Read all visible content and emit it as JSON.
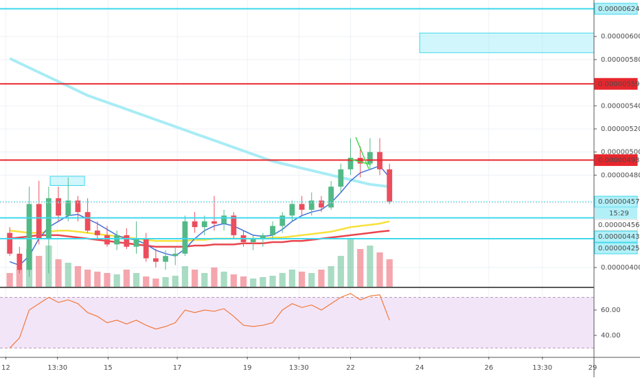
{
  "chart_data": {
    "type": "candlestick",
    "xlim": [
      0,
      61
    ],
    "xticks": [
      {
        "value": 0.6,
        "label": "12"
      },
      {
        "value": 5.9,
        "label": "13:30"
      },
      {
        "value": 11.1,
        "label": "15"
      },
      {
        "value": 18.2,
        "label": "17"
      },
      {
        "value": 25.4,
        "label": "19"
      },
      {
        "value": 30.7,
        "label": "13:30"
      },
      {
        "value": 36,
        "label": "22"
      },
      {
        "value": 43.1,
        "label": "24"
      },
      {
        "value": 50.2,
        "label": "26"
      },
      {
        "value": 55.7,
        "label": "13:30"
      },
      {
        "value": 61,
        "label": "29"
      }
    ],
    "ylim": [
      3.834e-06,
      6.316e-06
    ],
    "yticks": [
      {
        "value": 4e-06,
        "label": "0.00000400"
      },
      {
        "value": 4.8e-06,
        "label": "0.00000480"
      },
      {
        "value": 5e-06,
        "label": "0.00000500"
      },
      {
        "value": 5.2e-06,
        "label": "0.00000520"
      },
      {
        "value": 5.4e-06,
        "label": "0.00000540"
      },
      {
        "value": 5.8e-06,
        "label": "0.00000580"
      },
      {
        "value": 6e-06,
        "label": "0.00000600"
      }
    ],
    "grid": true,
    "up_color": "#53b987",
    "down_color": "#eb4d5c",
    "x": [
      1,
      2,
      3,
      4,
      5,
      6,
      7,
      8,
      9,
      10,
      11,
      12,
      13,
      14,
      15,
      16,
      17,
      18,
      19,
      20,
      21,
      22,
      23,
      24,
      25,
      26,
      27,
      28,
      29,
      30,
      31,
      32,
      33,
      34,
      35,
      36,
      37,
      38,
      39,
      40
    ],
    "open": [
      4.3e-06,
      4.12e-06,
      3.98e-06,
      4.55e-06,
      4.25e-06,
      4.6e-06,
      4.45e-06,
      4.58e-06,
      4.48e-06,
      4.32e-06,
      4.28e-06,
      4.2e-06,
      4.28e-06,
      4.18e-06,
      4.25e-06,
      4.08e-06,
      4.05e-06,
      4.1e-06,
      4.12e-06,
      4.4e-06,
      4.35e-06,
      4.4e-06,
      4.38e-06,
      4.45e-06,
      4.28e-06,
      4.22e-06,
      4.25e-06,
      4.28e-06,
      4.36e-06,
      4.45e-06,
      4.55e-06,
      4.5e-06,
      4.58e-06,
      4.52e-06,
      4.7e-06,
      4.85e-06,
      4.95e-06,
      4.9e-06,
      5e-06,
      4.85e-06
    ],
    "high": [
      4.35e-06,
      4.18e-06,
      4.7e-06,
      4.75e-06,
      4.7e-06,
      4.7e-06,
      4.78e-06,
      4.62e-06,
      4.6e-06,
      4.4e-06,
      4.36e-06,
      4.32e-06,
      4.34e-06,
      4.4e-06,
      4.3e-06,
      4.16e-06,
      4.15e-06,
      4.18e-06,
      4.45e-06,
      4.48e-06,
      4.45e-06,
      4.62e-06,
      4.5e-06,
      4.48e-06,
      4.32e-06,
      4.28e-06,
      4.3e-06,
      4.4e-06,
      4.48e-06,
      4.58e-06,
      4.62e-06,
      4.65e-06,
      4.62e-06,
      4.75e-06,
      4.9e-06,
      5.12e-06,
      5.05e-06,
      5.12e-06,
      5.12e-06,
      4.9e-06
    ],
    "low": [
      4.1e-06,
      3.95e-06,
      3.92e-06,
      4.2e-06,
      3.95e-06,
      4.4e-06,
      4.4e-06,
      4.4e-06,
      4.3e-06,
      4.25e-06,
      4.18e-06,
      4.15e-06,
      4.16e-06,
      4.12e-06,
      4.05e-06,
      4e-06,
      3.98e-06,
      4.02e-06,
      4.1e-06,
      4.3e-06,
      4.28e-06,
      4.32e-06,
      4.32e-06,
      4.25e-06,
      4.18e-06,
      4.15e-06,
      4.18e-06,
      4.24e-06,
      4.3e-06,
      4.4e-06,
      4.45e-06,
      4.45e-06,
      4.48e-06,
      4.5e-06,
      4.65e-06,
      4.8e-06,
      4.78e-06,
      4.85e-06,
      4.8e-06,
      4.55e-06
    ],
    "close": [
      4.12e-06,
      3.98e-06,
      4.55e-06,
      4.25e-06,
      4.6e-06,
      4.45e-06,
      4.58e-06,
      4.48e-06,
      4.32e-06,
      4.28e-06,
      4.2e-06,
      4.28e-06,
      4.18e-06,
      4.25e-06,
      4.08e-06,
      4.05e-06,
      4.1e-06,
      4.12e-06,
      4.4e-06,
      4.35e-06,
      4.4e-06,
      4.38e-06,
      4.45e-06,
      4.28e-06,
      4.22e-06,
      4.25e-06,
      4.28e-06,
      4.36e-06,
      4.45e-06,
      4.55e-06,
      4.5e-06,
      4.58e-06,
      4.52e-06,
      4.7e-06,
      4.85e-06,
      4.95e-06,
      4.9e-06,
      5e-06,
      4.85e-06,
      4.57e-06
    ],
    "volume": [
      20,
      25,
      55,
      45,
      60,
      40,
      35,
      30,
      25,
      22,
      20,
      18,
      25,
      20,
      15,
      12,
      14,
      16,
      30,
      25,
      20,
      28,
      22,
      18,
      15,
      12,
      14,
      16,
      20,
      25,
      22,
      20,
      25,
      30,
      45,
      70,
      55,
      60,
      50,
      40
    ],
    "series": [
      {
        "color": "#a8ecf5",
        "width": 4,
        "values": [
          5.81e-06,
          5.77e-06,
          5.73e-06,
          5.69e-06,
          5.65e-06,
          5.61e-06,
          5.57e-06,
          5.53e-06,
          5.49e-06,
          5.46e-06,
          5.43e-06,
          5.4e-06,
          5.37e-06,
          5.34e-06,
          5.31e-06,
          5.28e-06,
          5.25e-06,
          5.22e-06,
          5.19e-06,
          5.16e-06,
          5.13e-06,
          5.1e-06,
          5.07e-06,
          5.04e-06,
          5.01e-06,
          4.98e-06,
          4.95e-06,
          4.92e-06,
          4.9e-06,
          4.88e-06,
          4.86e-06,
          4.84e-06,
          4.82e-06,
          4.8e-06,
          4.78e-06,
          4.76e-06,
          4.74e-06,
          4.72e-06,
          4.71e-06,
          4.7e-06
        ]
      },
      {
        "color": "#f7e13b",
        "width": 2.5,
        "values": [
          4.32e-06,
          4.31e-06,
          4.3e-06,
          4.3e-06,
          4.31e-06,
          4.32e-06,
          4.32e-06,
          4.31e-06,
          4.3e-06,
          4.29e-06,
          4.28e-06,
          4.27e-06,
          4.26e-06,
          4.25e-06,
          4.24e-06,
          4.23e-06,
          4.23e-06,
          4.23e-06,
          4.23e-06,
          4.24e-06,
          4.24e-06,
          4.25e-06,
          4.25e-06,
          4.25e-06,
          4.25e-06,
          4.25e-06,
          4.25e-06,
          4.26e-06,
          4.26e-06,
          4.27e-06,
          4.28e-06,
          4.29e-06,
          4.3e-06,
          4.31e-06,
          4.33e-06,
          4.35e-06,
          4.36e-06,
          4.37e-06,
          4.38e-06,
          4.4e-06
        ]
      },
      {
        "color": "#e8454d",
        "width": 2.5,
        "values": [
          4.25e-06,
          4.26e-06,
          4.27e-06,
          4.28e-06,
          4.28e-06,
          4.28e-06,
          4.27e-06,
          4.26e-06,
          4.25e-06,
          4.24e-06,
          4.23e-06,
          4.22e-06,
          4.21e-06,
          4.2e-06,
          4.19e-06,
          4.18e-06,
          4.18e-06,
          4.18e-06,
          4.18e-06,
          4.19e-06,
          4.19e-06,
          4.2e-06,
          4.2e-06,
          4.2e-06,
          4.21e-06,
          4.21e-06,
          4.21e-06,
          4.22e-06,
          4.22e-06,
          4.23e-06,
          4.23e-06,
          4.24e-06,
          4.25e-06,
          4.26e-06,
          4.27e-06,
          4.28e-06,
          4.29e-06,
          4.3e-06,
          4.31e-06,
          4.32e-06
        ]
      },
      {
        "color": "#3f6fd8",
        "width": 1.5,
        "values": [
          4.05e-06,
          4.02e-06,
          4.1e-06,
          4.25e-06,
          4.35e-06,
          4.4e-06,
          4.45e-06,
          4.46e-06,
          4.42e-06,
          4.38e-06,
          4.33e-06,
          4.28e-06,
          4.25e-06,
          4.24e-06,
          4.2e-06,
          4.15e-06,
          4.12e-06,
          4.1e-06,
          4.16e-06,
          4.25e-06,
          4.32e-06,
          4.36e-06,
          4.38e-06,
          4.36e-06,
          4.32e-06,
          4.28e-06,
          4.27e-06,
          4.28e-06,
          4.33e-06,
          4.4e-06,
          4.45e-06,
          4.48e-06,
          4.5e-06,
          4.56e-06,
          4.65e-06,
          4.75e-06,
          4.82e-06,
          4.85e-06,
          4.88e-06,
          4.78e-06
        ]
      }
    ],
    "zones": [
      {
        "x": [
          43.1,
          61
        ],
        "y": [
          5.86e-06,
          6.03e-06
        ],
        "color": "#b2f0f8"
      },
      {
        "x": [
          5.15,
          8.68
        ],
        "y": [
          4.71e-06,
          4.79e-06
        ],
        "color": "#b2f0f8"
      }
    ],
    "price_levels": [
      {
        "value": 6.24e-06,
        "label": "0.00000624",
        "color": "#3ed8ec",
        "dash": false
      },
      {
        "value": 5.59e-06,
        "label": "0.00000559",
        "color": "#e8262d",
        "dash": false
      },
      {
        "value": 4.93e-06,
        "label": "0.00000493",
        "color": "#e8262d",
        "dash": false
      },
      {
        "value": 4.57e-06,
        "label": "0.00000457",
        "color": "#3ed8ec",
        "dash": true
      },
      {
        "value": 4.56e-06,
        "label": "0.00000456",
        "color": "#d8d8d8",
        "dash": true
      },
      {
        "value": 4.43e-06,
        "label": "0.00000443",
        "color": "#3ed8ec",
        "dash": false
      },
      {
        "value": 4.25e-06,
        "label": "0.00000425",
        "color": "#3ed8ec",
        "dash": false
      }
    ],
    "countdown": "15:29",
    "rsi": {
      "ylim": [
        23.2,
        77.3
      ],
      "yticks": [
        {
          "value": 60,
          "label": "60.00"
        },
        {
          "value": 40,
          "label": "40.00"
        }
      ],
      "bands": [
        30,
        70
      ],
      "color": "#f0793a",
      "values": [
        30,
        38,
        60,
        65,
        70,
        66,
        68,
        65,
        58,
        55,
        50,
        52,
        49,
        52,
        48,
        45,
        47,
        50,
        60,
        58,
        60,
        59,
        61,
        55,
        48,
        47,
        48,
        50,
        60,
        65,
        62,
        64,
        60,
        65,
        70,
        73,
        68,
        71,
        72,
        52
      ]
    }
  }
}
